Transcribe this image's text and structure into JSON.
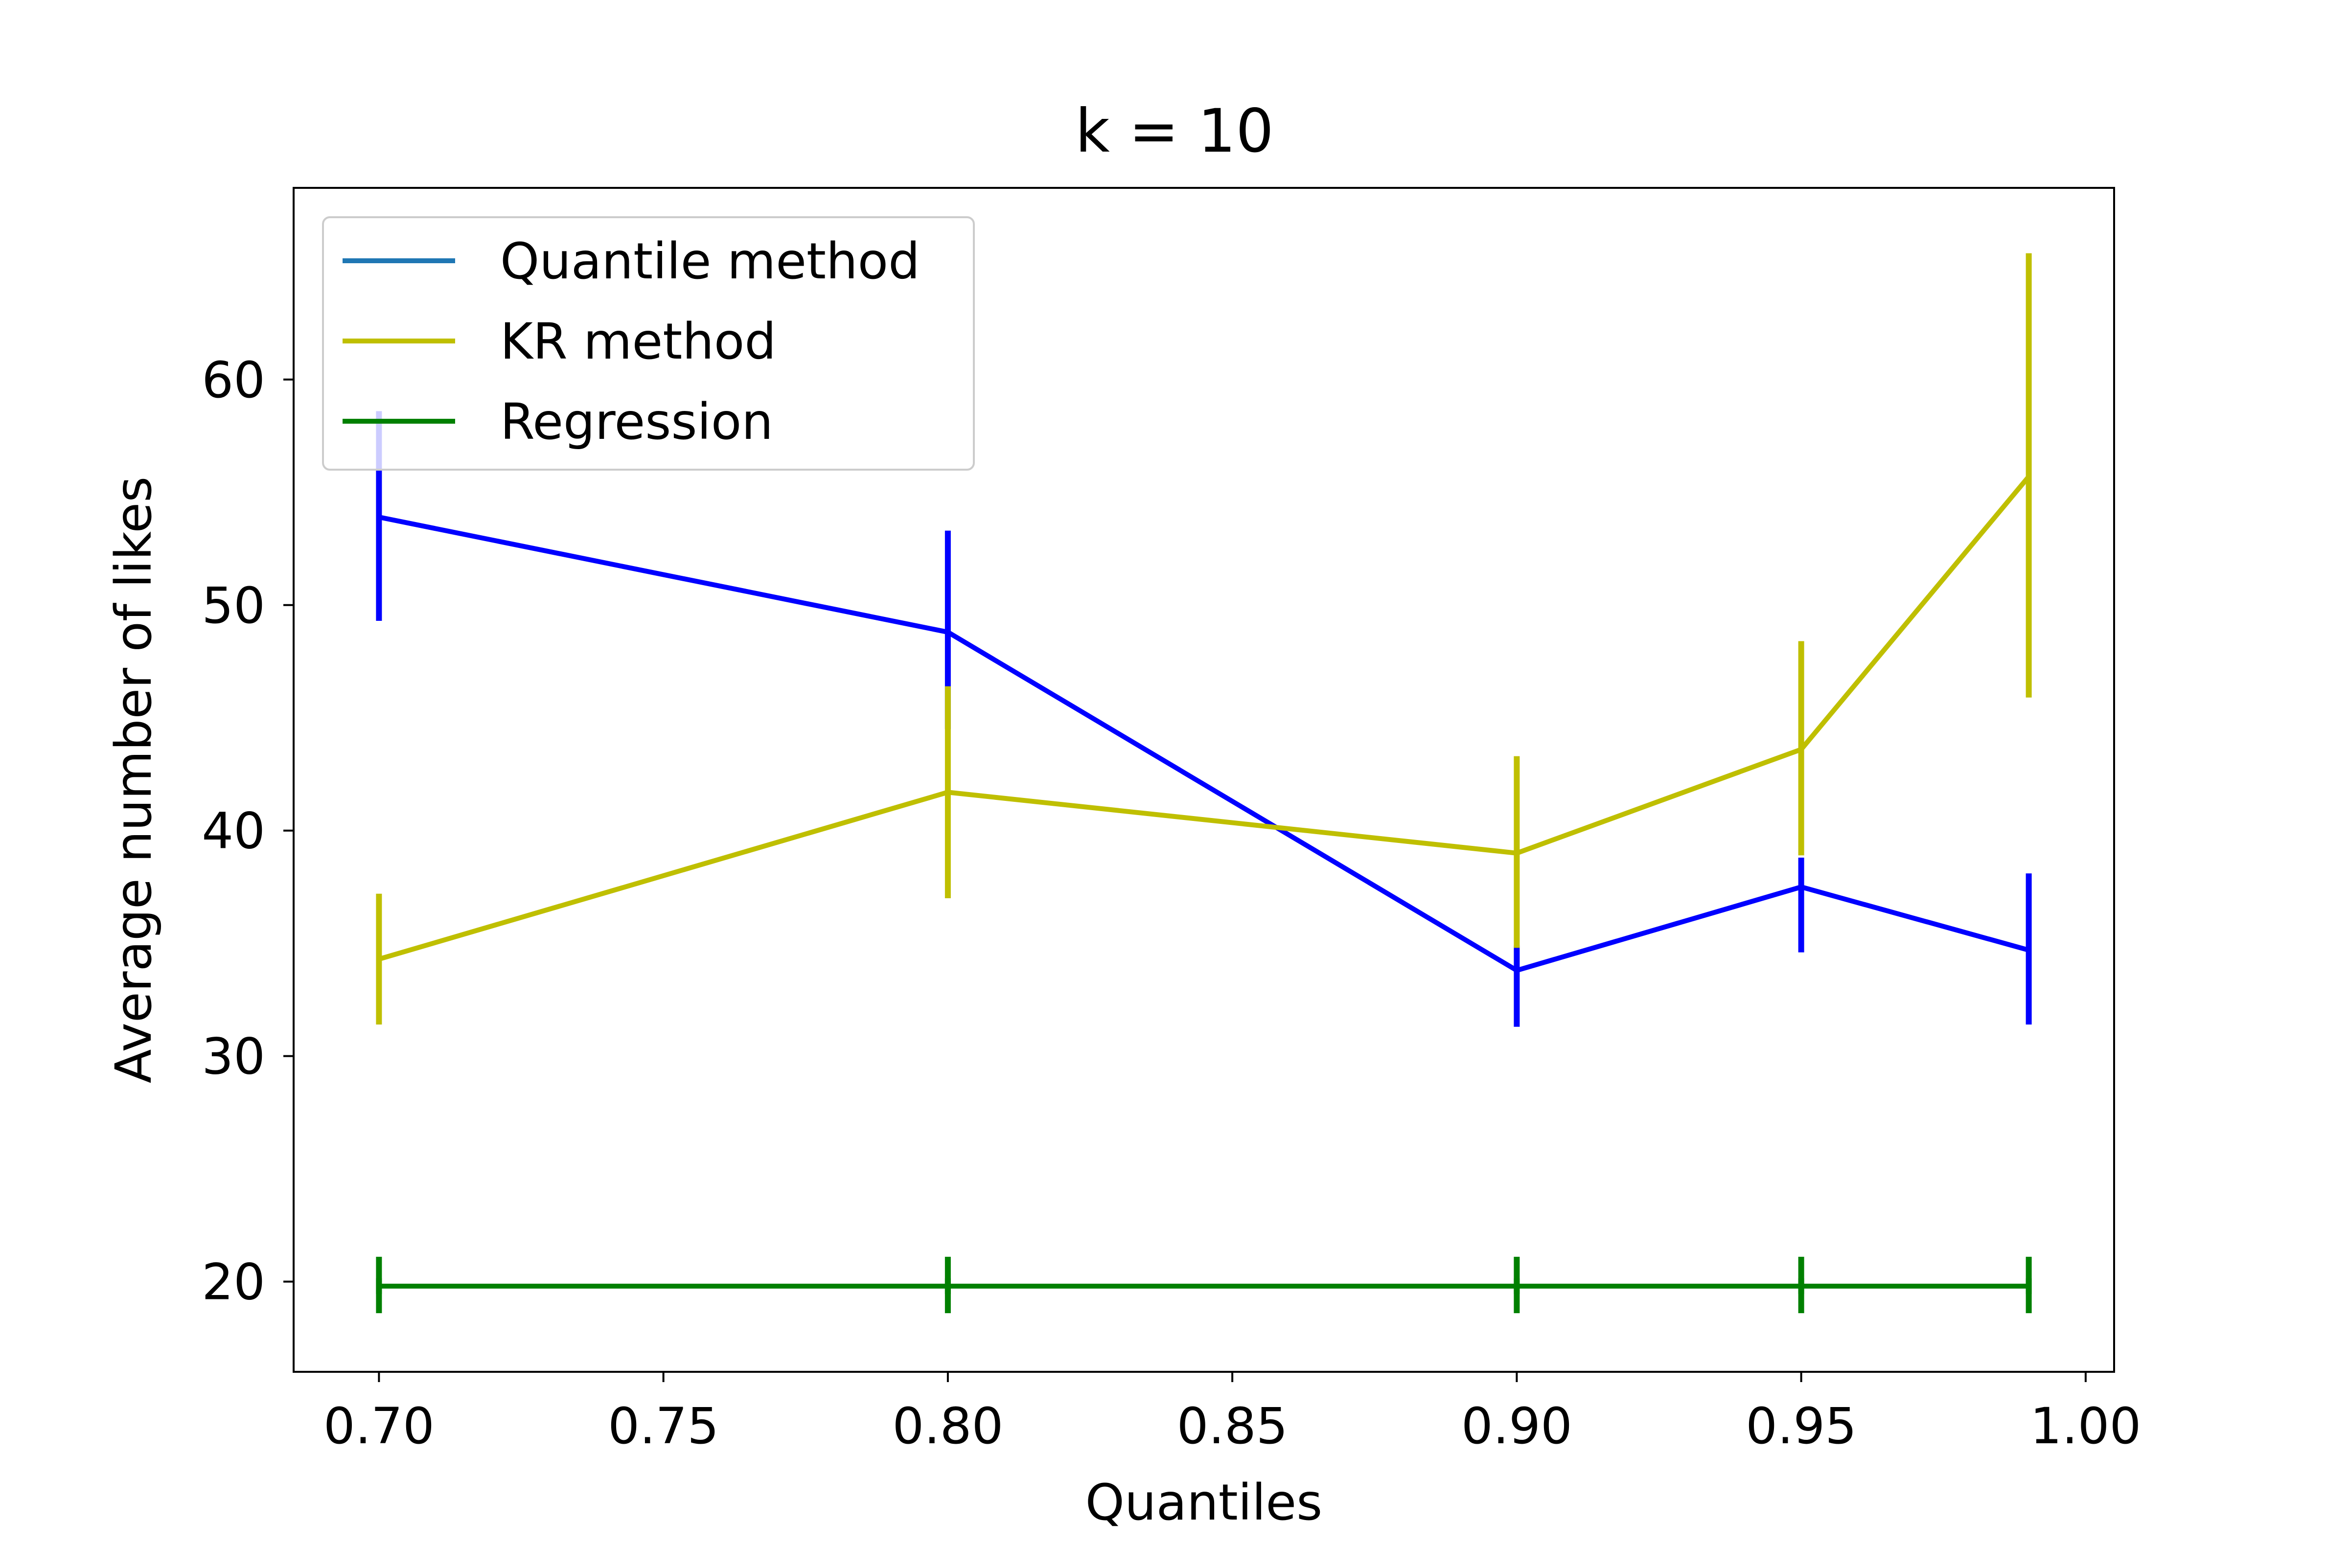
{
  "chart_data": {
    "type": "line",
    "title": "k = 10",
    "xlabel": "Quantiles",
    "ylabel": "Average number of likes",
    "xlim": [
      0.685,
      1.005
    ],
    "ylim": [
      16,
      68.5
    ],
    "x_ticks": [
      0.7,
      0.75,
      0.8,
      0.85,
      0.9,
      0.95,
      1.0
    ],
    "x_tick_labels": [
      "0.70",
      "0.75",
      "0.80",
      "0.85",
      "0.90",
      "0.95",
      "1.00"
    ],
    "y_ticks": [
      20,
      30,
      40,
      50,
      60
    ],
    "y_tick_labels": [
      "20",
      "30",
      "40",
      "50",
      "60"
    ],
    "grid": false,
    "legend_position": "upper-left",
    "x": [
      0.7,
      0.8,
      0.9,
      0.95,
      0.99
    ],
    "series": [
      {
        "name": "Quantile method",
        "legend_color": "#1f77b4",
        "color": "#0000ff",
        "values": [
          53.9,
          48.8,
          33.8,
          37.5,
          34.7
        ],
        "err_low": [
          49.3,
          44.5,
          31.3,
          34.6,
          31.4
        ],
        "err_high": [
          58.6,
          53.3,
          34.9,
          38.8,
          38.1
        ]
      },
      {
        "name": "KR method",
        "legend_color": "#bfbf00",
        "color": "#bfbf00",
        "values": [
          34.3,
          41.7,
          39.0,
          43.6,
          55.7
        ],
        "err_low": [
          31.4,
          37.0,
          34.8,
          38.9,
          45.9
        ],
        "err_high": [
          37.2,
          46.4,
          43.3,
          48.4,
          65.6
        ]
      },
      {
        "name": "Regression",
        "legend_color": "#008000",
        "color": "#008000",
        "values": [
          19.8,
          19.8,
          19.8,
          19.8,
          19.8
        ],
        "err_low": [
          18.6,
          18.6,
          18.6,
          18.6,
          18.6
        ],
        "err_high": [
          21.1,
          21.1,
          21.1,
          21.1,
          21.1
        ]
      }
    ]
  }
}
